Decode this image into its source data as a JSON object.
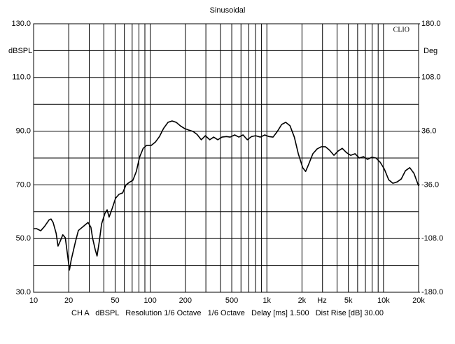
{
  "chart_data": {
    "type": "line",
    "title": "Sinusoidal",
    "annotation": "CLIO",
    "ylabel": "dBSPL",
    "y2label": "Deg",
    "xunit": "Hz",
    "footer": "CH A   dBSPL   Resolution 1/6 Octave   1/6 Octave   Delay [ms] 1.500   Dist Rise [dB] 30.00",
    "log_x": true,
    "grid": true,
    "color": "#000000",
    "xlim": [
      10,
      20000
    ],
    "ylim": [
      30,
      130
    ],
    "y2lim": [
      -180,
      180
    ],
    "xticks": [
      10,
      20,
      50,
      100,
      200,
      500,
      {
        "value": 1000,
        "label": "1k"
      },
      {
        "value": 2000,
        "label": "2k"
      },
      {
        "value": 5000,
        "label": "5k"
      },
      {
        "value": 10000,
        "label": "10k"
      },
      {
        "value": 20000,
        "label": "20k"
      }
    ],
    "xminorticks": [
      30,
      40,
      60,
      70,
      80,
      90,
      300,
      400,
      600,
      700,
      800,
      900,
      3000,
      4000,
      6000,
      7000,
      8000,
      9000
    ],
    "yticks": [
      {
        "value": 30,
        "label": "30.0"
      },
      {
        "value": 50,
        "label": "50.0"
      },
      {
        "value": 70,
        "label": "70.0"
      },
      {
        "value": 90,
        "label": "90.0"
      },
      {
        "value": 110,
        "label": "110.0"
      },
      {
        "value": 130,
        "label": "130.0"
      }
    ],
    "yminorticks": [
      40,
      60,
      80,
      100,
      120
    ],
    "y2ticks": [
      {
        "value": -180,
        "label": "-180.0"
      },
      {
        "value": -108,
        "label": "-108.0"
      },
      {
        "value": -36,
        "label": "-36.0"
      },
      {
        "value": 36,
        "label": "36.0"
      },
      {
        "value": 108,
        "label": "108.0"
      },
      {
        "value": 180,
        "label": "180.0"
      }
    ],
    "x": [
      10,
      10.6,
      11.5,
      12.4,
      13.6,
      14.1,
      14.7,
      15.6,
      16.2,
      16.9,
      17.8,
      18.7,
      19.4,
      20.3,
      21,
      22.9,
      24.2,
      27,
      29.3,
      31,
      32,
      33.7,
      35,
      36.6,
      38.3,
      40.9,
      42.7,
      44.4,
      47,
      50.4,
      54,
      58,
      62,
      66.5,
      71,
      76,
      81,
      87,
      93,
      102,
      111,
      120,
      130,
      142,
      154,
      167,
      181,
      197,
      214,
      233,
      252,
      274,
      297,
      324,
      350,
      380,
      412,
      450,
      485,
      530,
      575,
      625,
      680,
      740,
      800,
      880,
      960,
      1040,
      1130,
      1230,
      1340,
      1450,
      1580,
      1720,
      1860,
      2030,
      2150,
      2280,
      2480,
      2700,
      2930,
      3180,
      3450,
      3760,
      4080,
      4430,
      4820,
      5240,
      5700,
      6200,
      6720,
      7300,
      7940,
      8630,
      9380,
      10190,
      11080,
      12040,
      13100,
      14200,
      15450,
      16800,
      18250,
      19840,
      20000
    ],
    "values": [
      53.7,
      53.7,
      52.9,
      54.5,
      57,
      57.3,
      56,
      52,
      47.2,
      49,
      51.4,
      50.3,
      45,
      38.3,
      42,
      49,
      53,
      54.7,
      56,
      54.2,
      50.3,
      46,
      43.5,
      49,
      55.5,
      59.4,
      60.7,
      58,
      61,
      65,
      66.5,
      67,
      70,
      71,
      71.7,
      75,
      80.3,
      83.6,
      84.7,
      84.7,
      86,
      88,
      91,
      93.3,
      93.8,
      93.3,
      92,
      91,
      90.4,
      89.9,
      88.8,
      86.8,
      88.3,
      86.8,
      87.8,
      86.8,
      87.8,
      88,
      87.8,
      88.6,
      87.8,
      88.6,
      86.8,
      88,
      88.3,
      87.8,
      88.6,
      88,
      87.8,
      89.9,
      92.5,
      93.3,
      92,
      87.8,
      81.6,
      76.4,
      75,
      77.6,
      81.6,
      83.4,
      84.2,
      84.2,
      82.9,
      81,
      82.6,
      83.6,
      82,
      81,
      81.6,
      80,
      80.5,
      79.5,
      80.3,
      80,
      78.4,
      75.8,
      71.9,
      70.6,
      71.1,
      72.2,
      75.3,
      76.4,
      74.3,
      70,
      69.6
    ]
  }
}
